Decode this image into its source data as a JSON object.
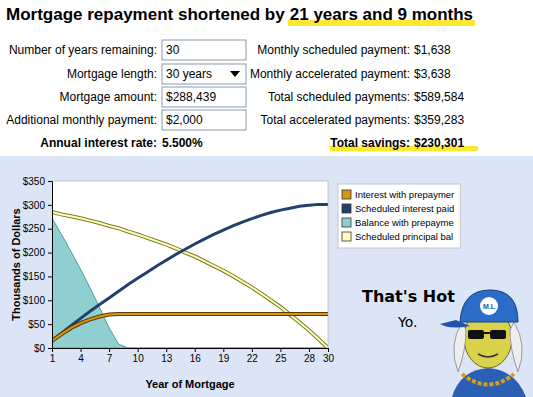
{
  "header": {
    "text": "Mortgage repayment shortened by",
    "highlight": "21 years and 9 months"
  },
  "calculator": {
    "left": [
      {
        "label": "Number of years remaining:",
        "value": "30"
      },
      {
        "label": "Mortgage length:",
        "value": "30 years"
      },
      {
        "label": "Mortgage amount:",
        "value": "$288,439"
      },
      {
        "label": "Additional monthly payment:",
        "value": "$2,000"
      },
      {
        "label": "Annual interest rate:",
        "value": "5.500%"
      }
    ],
    "right": [
      {
        "label": "Monthly scheduled payment:",
        "value": "$1,638"
      },
      {
        "label": "Monthly accelerated payment:",
        "value": "$3,638"
      },
      {
        "label": "Total scheduled payments:",
        "value": "$589,584"
      },
      {
        "label": "Total accelerated payments:",
        "value": "$359,283"
      },
      {
        "label": "Total savings:",
        "value": "$230,301"
      }
    ]
  },
  "chart_data": {
    "type": "line",
    "xlabel": "Year of Mortgage",
    "ylabel": "Thousands of Dollars",
    "x": [
      1,
      2,
      3,
      4,
      5,
      6,
      7,
      8,
      9,
      10,
      11,
      12,
      13,
      14,
      15,
      16,
      17,
      18,
      19,
      20,
      21,
      22,
      23,
      24,
      25,
      26,
      27,
      28,
      29,
      30
    ],
    "xlim": [
      1,
      30
    ],
    "xticks": [
      1,
      4,
      7,
      10,
      13,
      16,
      19,
      22,
      25,
      28,
      30
    ],
    "ylim": [
      0,
      350
    ],
    "yticks": [
      {
        "value": 0,
        "label": "$0"
      },
      {
        "value": 50,
        "label": "$50"
      },
      {
        "value": 100,
        "label": "$100"
      },
      {
        "value": 150,
        "label": "$150"
      },
      {
        "value": 200,
        "label": "$200"
      },
      {
        "value": 250,
        "label": "$250"
      },
      {
        "value": 300,
        "label": "$300"
      },
      {
        "value": 350,
        "label": "$350"
      }
    ],
    "grid": false,
    "legend": "right",
    "series": [
      {
        "name": "Interest with prepaymer",
        "type": "line",
        "color": "#d9960f",
        "values": [
          15,
          29,
          42,
          52,
          60,
          66,
          70,
          71,
          71,
          71,
          71,
          71,
          71,
          71,
          71,
          71,
          71,
          71,
          71,
          71,
          71,
          71,
          71,
          71,
          71,
          71,
          71,
          71,
          71,
          71
        ]
      },
      {
        "name": "Scheduled interest paid",
        "type": "line",
        "color": "#22406b",
        "values": [
          16,
          31,
          47,
          62,
          77,
          91,
          105,
          119,
          133,
          146,
          159,
          172,
          184,
          196,
          207,
          218,
          228,
          238,
          247,
          256,
          264,
          271,
          278,
          284,
          289,
          293,
          297,
          299,
          301,
          301
        ]
      },
      {
        "name": "Balance with prepayme",
        "type": "area",
        "color": "#8fcfcf",
        "values": [
          272,
          238,
          202,
          165,
          126,
          85,
          42,
          8,
          0,
          0,
          0,
          0,
          0,
          0,
          0,
          0,
          0,
          0,
          0,
          0,
          0,
          0,
          0,
          0,
          0,
          0,
          0,
          0,
          0,
          0
        ]
      },
      {
        "name": "Scheduled principal bal",
        "type": "line",
        "color": "#ffffc0",
        "values": [
          285,
          280,
          276,
          272,
          267,
          262,
          256,
          251,
          244,
          238,
          231,
          224,
          217,
          209,
          200,
          192,
          182,
          172,
          162,
          151,
          139,
          127,
          114,
          100,
          86,
          70,
          54,
          37,
          19,
          0
        ]
      }
    ]
  },
  "cartoon": {
    "lines": [
      "That's Hot",
      "Yo."
    ],
    "badge": "M.L"
  }
}
